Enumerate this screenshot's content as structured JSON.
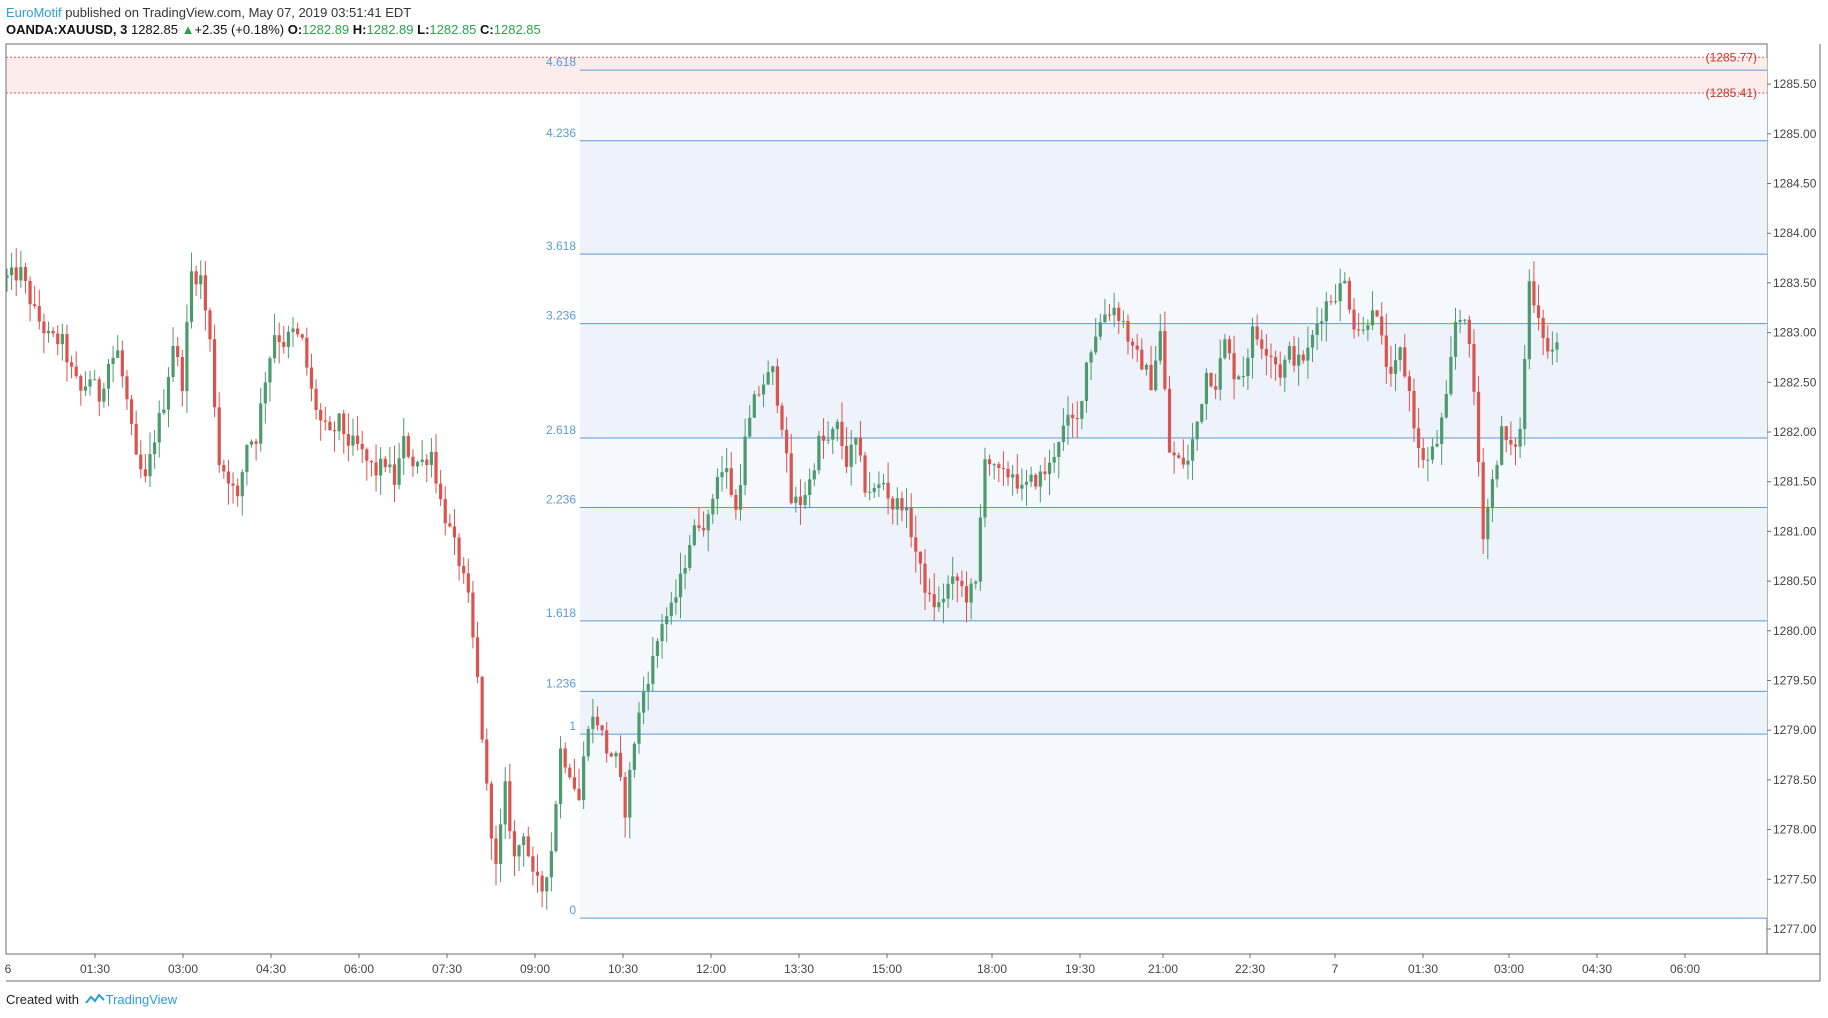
{
  "header": {
    "author": "EuroMotif",
    "published": "published on TradingView.com, May 07, 2019 03:51:41 EDT",
    "symbol": "OANDA:XAUUSD, 3",
    "last": "1282.85",
    "change": "+2.35 (+0.18%)",
    "ohlc": [
      {
        "k": "O:",
        "v": "1282.89"
      },
      {
        "k": "H:",
        "v": "1282.89"
      },
      {
        "k": "L:",
        "v": "1282.85"
      },
      {
        "k": "C:",
        "v": "1282.85"
      }
    ]
  },
  "footer": {
    "created": "Created with",
    "brand": "TradingView"
  },
  "colors": {
    "up": "#4c9a6e",
    "down": "#d9534f",
    "fib_line": "#5b9bd5",
    "fib_fill": "#eef3fb",
    "alert": "#e05555"
  },
  "chart_data": {
    "type": "candlestick",
    "y_axis_labels": [
      "1285.50",
      "1285.00",
      "1284.50",
      "1284.00",
      "1283.50",
      "1283.00",
      "1282.50",
      "1282.00",
      "1281.50",
      "1281.00",
      "1280.50",
      "1280.00",
      "1279.50",
      "1279.00",
      "1278.50",
      "1278.00",
      "1277.50",
      "1277.00"
    ],
    "ylim": [
      1276.8,
      1285.9
    ],
    "x_axis_labels": [
      "01:30",
      "03:00",
      "04:30",
      "06:00",
      "07:30",
      "09:00",
      "10:30",
      "12:00",
      "13:30",
      "15:00",
      "18:00",
      "19:30",
      "21:00",
      "22:30",
      "7",
      "01:30",
      "03:00",
      "04:30",
      "06:00"
    ],
    "x_edge_label": "6",
    "fib_levels": [
      {
        "label": "0",
        "price": 1277.11
      },
      {
        "label": "1",
        "price": 1278.96
      },
      {
        "label": "1.236",
        "price": 1279.39
      },
      {
        "label": "1.618",
        "price": 1280.1
      },
      {
        "label": "2.236",
        "price": 1281.24
      },
      {
        "label": "2.618",
        "price": 1281.94
      },
      {
        "label": "3.236",
        "price": 1283.09
      },
      {
        "label": "3.618",
        "price": 1283.79
      },
      {
        "label": "4.236",
        "price": 1284.93
      },
      {
        "label": "4.618",
        "price": 1285.64
      }
    ],
    "price_alerts": [
      "(1285.77)",
      "(1285.41)"
    ],
    "price_alert_values": [
      1285.77,
      1285.41
    ],
    "close_path": [
      [
        0,
        1283.55
      ],
      [
        3,
        1283.6
      ],
      [
        6,
        1283.2
      ],
      [
        9,
        1282.95
      ],
      [
        12,
        1282.9
      ],
      [
        14,
        1282.6
      ],
      [
        16,
        1282.4
      ],
      [
        18,
        1282.55
      ],
      [
        20,
        1282.35
      ],
      [
        22,
        1282.7
      ],
      [
        24,
        1282.8
      ],
      [
        26,
        1282.3
      ],
      [
        28,
        1281.7
      ],
      [
        30,
        1281.5
      ],
      [
        32,
        1281.95
      ],
      [
        34,
        1282.3
      ],
      [
        36,
        1282.9
      ],
      [
        38,
        1282.5
      ],
      [
        40,
        1283.6
      ],
      [
        42,
        1283.55
      ],
      [
        44,
        1282.9
      ],
      [
        46,
        1281.7
      ],
      [
        48,
        1281.55
      ],
      [
        50,
        1281.3
      ],
      [
        52,
        1281.9
      ],
      [
        54,
        1281.95
      ],
      [
        56,
        1282.55
      ],
      [
        58,
        1283.0
      ],
      [
        60,
        1282.9
      ],
      [
        62,
        1283.0
      ],
      [
        64,
        1282.9
      ],
      [
        66,
        1282.4
      ],
      [
        68,
        1282.1
      ],
      [
        70,
        1281.95
      ],
      [
        72,
        1282.1
      ],
      [
        74,
        1281.9
      ],
      [
        76,
        1281.85
      ],
      [
        78,
        1281.7
      ],
      [
        80,
        1281.6
      ],
      [
        82,
        1281.7
      ],
      [
        84,
        1281.5
      ],
      [
        86,
        1281.9
      ],
      [
        88,
        1281.7
      ],
      [
        90,
        1281.7
      ],
      [
        92,
        1281.8
      ],
      [
        94,
        1281.3
      ],
      [
        96,
        1281.0
      ],
      [
        98,
        1280.7
      ],
      [
        100,
        1280.3
      ],
      [
        102,
        1279.5
      ],
      [
        104,
        1278.4
      ],
      [
        106,
        1277.6
      ],
      [
        108,
        1278.4
      ],
      [
        110,
        1277.7
      ],
      [
        112,
        1278.0
      ],
      [
        114,
        1277.5
      ],
      [
        116,
        1277.4
      ],
      [
        118,
        1277.8
      ],
      [
        120,
        1278.8
      ],
      [
        122,
        1278.6
      ],
      [
        124,
        1278.3
      ],
      [
        126,
        1279.1
      ],
      [
        128,
        1279.1
      ],
      [
        130,
        1278.8
      ],
      [
        132,
        1278.7
      ],
      [
        134,
        1278.2
      ],
      [
        136,
        1278.9
      ],
      [
        138,
        1279.4
      ],
      [
        140,
        1279.7
      ],
      [
        142,
        1280.1
      ],
      [
        144,
        1280.2
      ],
      [
        146,
        1280.5
      ],
      [
        148,
        1280.9
      ],
      [
        150,
        1281.1
      ],
      [
        152,
        1281.1
      ],
      [
        154,
        1281.6
      ],
      [
        156,
        1281.6
      ],
      [
        158,
        1281.2
      ],
      [
        160,
        1281.9
      ],
      [
        162,
        1282.3
      ],
      [
        164,
        1282.5
      ],
      [
        166,
        1282.6
      ],
      [
        168,
        1282.1
      ],
      [
        170,
        1281.3
      ],
      [
        172,
        1281.3
      ],
      [
        174,
        1281.5
      ],
      [
        176,
        1281.9
      ],
      [
        178,
        1281.9
      ],
      [
        180,
        1282.05
      ],
      [
        182,
        1281.7
      ],
      [
        184,
        1281.9
      ],
      [
        186,
        1281.45
      ],
      [
        188,
        1281.4
      ],
      [
        190,
        1281.5
      ],
      [
        192,
        1281.25
      ],
      [
        194,
        1281.3
      ],
      [
        196,
        1281.0
      ],
      [
        198,
        1280.6
      ],
      [
        200,
        1280.3
      ],
      [
        202,
        1280.25
      ],
      [
        204,
        1280.45
      ],
      [
        206,
        1280.5
      ],
      [
        208,
        1280.35
      ],
      [
        210,
        1280.45
      ],
      [
        212,
        1281.8
      ],
      [
        214,
        1281.6
      ],
      [
        216,
        1281.55
      ],
      [
        218,
        1281.6
      ],
      [
        220,
        1281.4
      ],
      [
        222,
        1281.5
      ],
      [
        224,
        1281.55
      ],
      [
        226,
        1281.65
      ],
      [
        228,
        1281.95
      ],
      [
        230,
        1282.1
      ],
      [
        232,
        1282.1
      ],
      [
        234,
        1282.7
      ],
      [
        236,
        1283.0
      ],
      [
        238,
        1283.2
      ],
      [
        240,
        1283.25
      ],
      [
        242,
        1283.1
      ],
      [
        244,
        1282.8
      ],
      [
        246,
        1282.7
      ],
      [
        248,
        1282.5
      ],
      [
        250,
        1283.0
      ],
      [
        252,
        1281.8
      ],
      [
        254,
        1281.7
      ],
      [
        256,
        1281.7
      ],
      [
        258,
        1282.1
      ],
      [
        260,
        1282.6
      ],
      [
        262,
        1282.5
      ],
      [
        264,
        1282.9
      ],
      [
        266,
        1282.6
      ],
      [
        268,
        1282.6
      ],
      [
        270,
        1283.0
      ],
      [
        272,
        1282.9
      ],
      [
        274,
        1282.8
      ],
      [
        276,
        1282.6
      ],
      [
        278,
        1282.8
      ],
      [
        280,
        1282.7
      ],
      [
        282,
        1282.8
      ],
      [
        284,
        1283.1
      ],
      [
        286,
        1283.3
      ],
      [
        288,
        1283.4
      ],
      [
        290,
        1283.5
      ],
      [
        292,
        1283.1
      ],
      [
        294,
        1283.0
      ],
      [
        296,
        1283.3
      ],
      [
        298,
        1282.9
      ],
      [
        300,
        1282.5
      ],
      [
        302,
        1282.8
      ],
      [
        304,
        1282.4
      ],
      [
        306,
        1281.8
      ],
      [
        308,
        1281.7
      ],
      [
        310,
        1281.9
      ],
      [
        312,
        1282.3
      ],
      [
        314,
        1283.1
      ],
      [
        316,
        1283.2
      ],
      [
        318,
        1282.4
      ],
      [
        320,
        1281.0
      ],
      [
        322,
        1281.5
      ],
      [
        324,
        1282.0
      ],
      [
        326,
        1281.8
      ],
      [
        328,
        1282.0
      ],
      [
        330,
        1283.5
      ],
      [
        332,
        1283.2
      ],
      [
        334,
        1282.8
      ],
      [
        336,
        1282.85
      ]
    ]
  }
}
